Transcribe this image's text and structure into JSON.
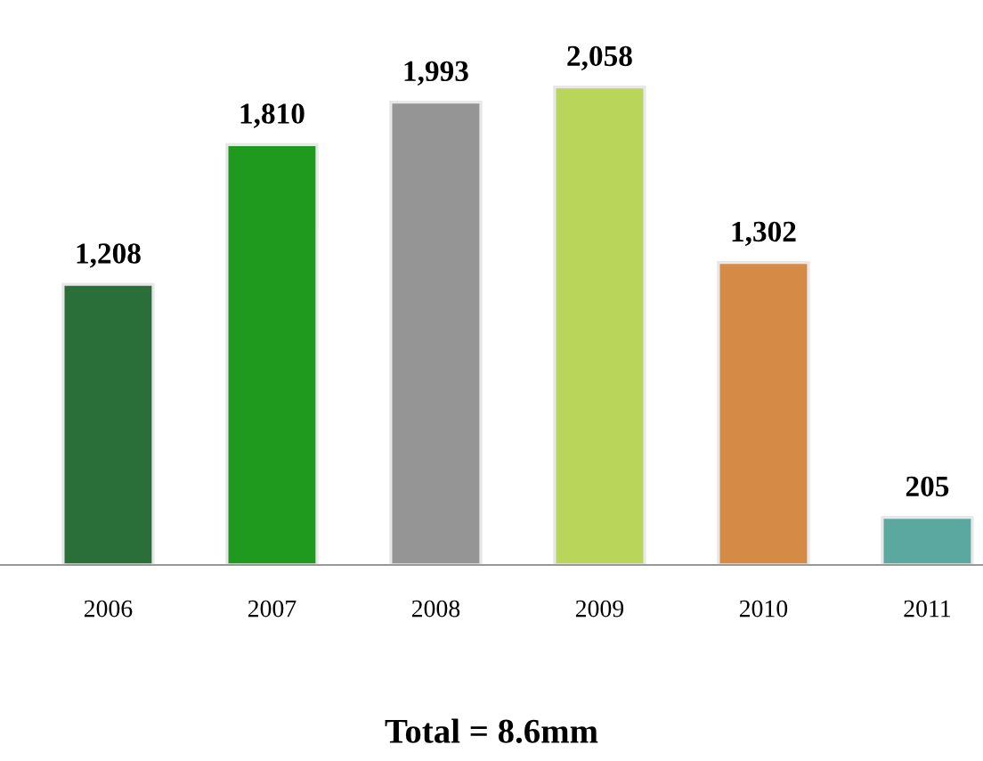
{
  "chart_data": {
    "type": "bar",
    "categories": [
      "2006",
      "2007",
      "2008",
      "2009",
      "2010",
      "2011"
    ],
    "values": [
      1208,
      1810,
      1993,
      2058,
      1302,
      205
    ],
    "colors": [
      "#2a6e3a",
      "#1f9a1f",
      "#959595",
      "#b9d55a",
      "#d58a45",
      "#5aa8a0"
    ],
    "value_labels": [
      "1,208",
      "1,810",
      "1,993",
      "2,058",
      "1,302",
      "205"
    ],
    "grid": false,
    "legend": false,
    "annotations": [
      "Total = 8.6mm"
    ]
  }
}
